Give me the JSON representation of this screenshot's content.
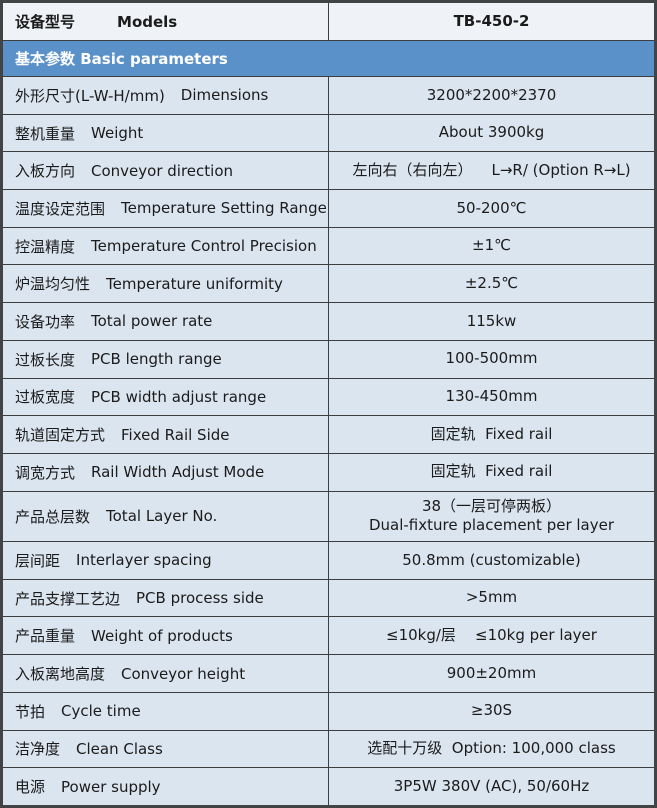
{
  "header": {
    "label_zh": "设备型号",
    "label_en": "Models",
    "value": "TB-450-2"
  },
  "section": {
    "title": "基本参数 Basic parameters"
  },
  "rows": [
    {
      "zh": "外形尺寸(L-W-H/mm)",
      "en": "Dimensions",
      "value": "3200*2200*2370"
    },
    {
      "zh": "整机重量",
      "en": "Weight",
      "value": "About 3900kg"
    },
    {
      "zh": "入板方向",
      "en": "Conveyor direction",
      "value": "左向右（右向左）    L→R/ (Option R→L)"
    },
    {
      "zh": "温度设定范围",
      "en": "Temperature Setting Range",
      "value": "50-200℃"
    },
    {
      "zh": "控温精度",
      "en": "Temperature Control Precision",
      "value": "±1℃"
    },
    {
      "zh": "炉温均匀性",
      "en": "Temperature uniformity",
      "value": "±2.5℃"
    },
    {
      "zh": "设备功率",
      "en": "Total power rate",
      "value": "115kw"
    },
    {
      "zh": "过板长度",
      "en": "PCB length range",
      "value": "100-500mm"
    },
    {
      "zh": "过板宽度",
      "en": "PCB width adjust range",
      "value": "130-450mm"
    },
    {
      "zh": "轨道固定方式",
      "en": "Fixed Rail Side",
      "value": "固定轨  Fixed rail"
    },
    {
      "zh": "调宽方式",
      "en": "Rail Width Adjust Mode",
      "value": "固定轨  Fixed rail"
    },
    {
      "zh": "产品总层数",
      "en": "Total Layer No.",
      "value": "38（一层可停两板）\nDual-fixture placement per layer"
    },
    {
      "zh": "层间距",
      "en": "Interlayer spacing",
      "value": "50.8mm (customizable)"
    },
    {
      "zh": "产品支撑工艺边",
      "en": "PCB process side",
      "value": ">5mm"
    },
    {
      "zh": "产品重量",
      "en": "Weight of products",
      "value": "≤10kg/层    ≤10kg per layer"
    },
    {
      "zh": "入板离地高度",
      "en": "Conveyor height",
      "value": "900±20mm"
    },
    {
      "zh": "节拍",
      "en": "Cycle time",
      "value": "≥30S"
    },
    {
      "zh": "洁净度",
      "en": "Clean Class",
      "value": "选配十万级  Option: 100,000 class"
    },
    {
      "zh": "电源",
      "en": "Power supply",
      "value": "3P5W 380V (AC), 50/60Hz"
    }
  ],
  "colors": {
    "section_band": "#5b91c9",
    "row_background": "#dbe5f0",
    "header_background": "#eff3f7",
    "grid_border": "#3c3e40",
    "band_text": "#ffffff",
    "body_text": "#1b1b1b"
  }
}
